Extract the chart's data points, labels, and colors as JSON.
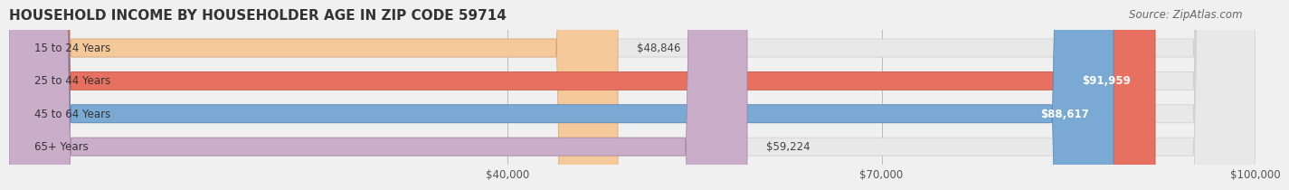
{
  "title": "HOUSEHOLD INCOME BY HOUSEHOLDER AGE IN ZIP CODE 59714",
  "source": "Source: ZipAtlas.com",
  "categories": [
    "15 to 24 Years",
    "25 to 44 Years",
    "45 to 64 Years",
    "65+ Years"
  ],
  "values": [
    48846,
    91959,
    88617,
    59224
  ],
  "bar_colors": [
    "#f5c99a",
    "#e87060",
    "#7aaad4",
    "#c9adc9"
  ],
  "bar_edge_colors": [
    "#d4a070",
    "#c05040",
    "#5080b0",
    "#a080a0"
  ],
  "value_labels": [
    "$48,846",
    "$91,959",
    "$88,617",
    "$59,224"
  ],
  "label_inside": [
    false,
    true,
    true,
    false
  ],
  "xmin": 0,
  "xmax": 100000,
  "xticks": [
    40000,
    70000,
    100000
  ],
  "xtick_labels": [
    "$40,000",
    "$70,000",
    "$100,000"
  ],
  "background_color": "#f0f0f0",
  "bar_background_color": "#e8e8e8",
  "bar_height": 0.55,
  "title_fontsize": 11,
  "source_fontsize": 8.5,
  "label_fontsize": 8.5,
  "tick_fontsize": 8.5,
  "category_fontsize": 8.5
}
